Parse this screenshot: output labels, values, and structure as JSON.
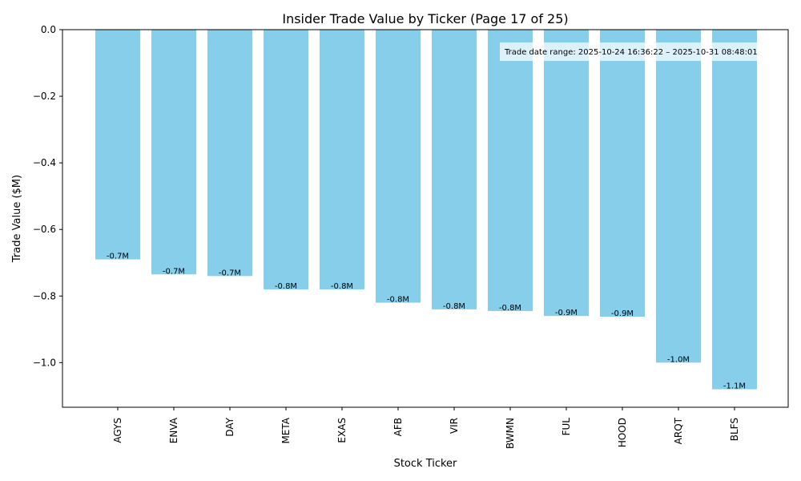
{
  "chart_data": {
    "type": "bar",
    "title": "Insider Trade Value by Ticker (Page 17 of 25)",
    "xlabel": "Stock Ticker",
    "ylabel": "Trade Value ($M)",
    "categories": [
      "AGYS",
      "ENVA",
      "DAY",
      "META",
      "EXAS",
      "AFB",
      "VIR",
      "BWMN",
      "FUL",
      "HOOD",
      "ARQT",
      "BLFS"
    ],
    "values": [
      -0.69,
      -0.735,
      -0.74,
      -0.78,
      -0.78,
      -0.82,
      -0.84,
      -0.845,
      -0.86,
      -0.862,
      -1.0,
      -1.08
    ],
    "data_labels": [
      "-0.7M",
      "-0.7M",
      "-0.7M",
      "-0.8M",
      "-0.8M",
      "-0.8M",
      "-0.8M",
      "-0.8M",
      "-0.9M",
      "-0.9M",
      "-1.0M",
      "-1.1M"
    ],
    "ylim": [
      -1.134,
      0.0
    ],
    "yticks": [
      0.0,
      -0.2,
      -0.4,
      -0.6,
      -0.8,
      -1.0
    ],
    "ytick_labels": [
      "0.0",
      "−0.2",
      "−0.4",
      "−0.6",
      "−0.8",
      "−1.0"
    ],
    "bar_color": "#87CEEB",
    "grid": false,
    "annotation": "Trade date range: 2025-10-24 16:36:22 – 2025-10-31 08:48:01"
  }
}
